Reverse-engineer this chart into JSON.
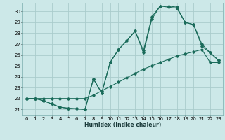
{
  "xlabel": "Humidex (Indice chaleur)",
  "bg_color": "#cce8e8",
  "grid_color": "#aacccc",
  "line_color": "#1a6b5a",
  "xlim": [
    -0.5,
    23.5
  ],
  "ylim": [
    20.5,
    30.8
  ],
  "xticks": [
    0,
    1,
    2,
    3,
    4,
    5,
    6,
    7,
    8,
    9,
    10,
    11,
    12,
    13,
    14,
    15,
    16,
    17,
    18,
    19,
    20,
    21,
    22,
    23
  ],
  "yticks": [
    21,
    22,
    23,
    24,
    25,
    26,
    27,
    28,
    29,
    30
  ],
  "line1_x": [
    0,
    1,
    2,
    3,
    4,
    5,
    6,
    7,
    8,
    9,
    10,
    11,
    12,
    13,
    14,
    15,
    16,
    17,
    18,
    19,
    20,
    21,
    22,
    23
  ],
  "line1_y": [
    22.0,
    22.0,
    22.0,
    22.0,
    22.0,
    22.0,
    22.0,
    22.0,
    22.3,
    22.7,
    23.1,
    23.5,
    23.9,
    24.3,
    24.7,
    25.0,
    25.3,
    25.6,
    25.9,
    26.1,
    26.3,
    26.5,
    25.3,
    25.3
  ],
  "line2_x": [
    0,
    1,
    2,
    3,
    4,
    5,
    6,
    7,
    8,
    9,
    10,
    11,
    12,
    13,
    14,
    15,
    16,
    17,
    18,
    19,
    20,
    21,
    22,
    23
  ],
  "line2_y": [
    22.0,
    22.0,
    21.8,
    21.5,
    21.2,
    21.1,
    21.05,
    21.0,
    23.8,
    22.5,
    25.3,
    26.5,
    27.3,
    28.2,
    26.2,
    29.3,
    30.5,
    30.5,
    30.4,
    29.0,
    28.8,
    27.0,
    26.2,
    25.5
  ],
  "line3_x": [
    0,
    1,
    2,
    3,
    4,
    5,
    6,
    7,
    8,
    9,
    10,
    11,
    12,
    13,
    14,
    15,
    16,
    17,
    18,
    19,
    20,
    21,
    22,
    23
  ],
  "line3_y": [
    22.0,
    22.0,
    21.8,
    21.5,
    21.2,
    21.1,
    21.05,
    21.0,
    23.8,
    22.5,
    25.3,
    26.5,
    27.3,
    28.2,
    26.4,
    29.5,
    30.5,
    30.4,
    30.3,
    29.0,
    28.8,
    26.8,
    26.2,
    25.5
  ]
}
